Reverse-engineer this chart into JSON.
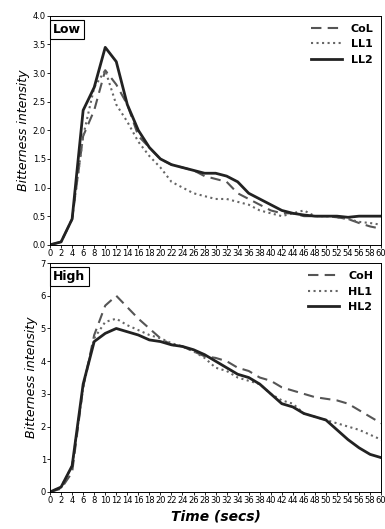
{
  "title_low": "Low",
  "title_high": "High",
  "xlabel": "Time (secs)",
  "ylabel": "Bitterness intensity",
  "xticks": [
    0,
    2,
    4,
    6,
    8,
    10,
    12,
    14,
    16,
    18,
    20,
    22,
    24,
    26,
    28,
    30,
    32,
    34,
    36,
    38,
    40,
    42,
    44,
    46,
    48,
    50,
    52,
    54,
    56,
    58,
    60
  ],
  "low": {
    "ylim": [
      0,
      4.0
    ],
    "yticks": [
      0.0,
      0.5,
      1.0,
      1.5,
      2.0,
      2.5,
      3.0,
      3.5,
      4.0
    ],
    "CoL": {
      "x": [
        0,
        2,
        4,
        6,
        8,
        10,
        12,
        14,
        16,
        18,
        20,
        22,
        24,
        26,
        28,
        30,
        32,
        34,
        36,
        38,
        40,
        42,
        44,
        46,
        48,
        50,
        52,
        54,
        56,
        58,
        60
      ],
      "y": [
        0.0,
        0.05,
        0.45,
        1.9,
        2.35,
        3.05,
        2.8,
        2.45,
        1.9,
        1.7,
        1.5,
        1.4,
        1.35,
        1.3,
        1.2,
        1.15,
        1.1,
        0.9,
        0.8,
        0.7,
        0.6,
        0.55,
        0.55,
        0.5,
        0.5,
        0.5,
        0.48,
        0.45,
        0.38,
        0.32,
        0.28
      ],
      "style": "dashed",
      "color": "#555555",
      "linewidth": 1.5
    },
    "LL1": {
      "x": [
        0,
        2,
        4,
        6,
        8,
        10,
        12,
        14,
        16,
        18,
        20,
        22,
        24,
        26,
        28,
        30,
        32,
        34,
        36,
        38,
        40,
        42,
        44,
        46,
        48,
        50,
        52,
        54,
        56,
        58,
        60
      ],
      "y": [
        0.0,
        0.05,
        0.45,
        1.9,
        2.75,
        3.05,
        2.45,
        2.15,
        1.8,
        1.55,
        1.35,
        1.1,
        1.0,
        0.9,
        0.85,
        0.8,
        0.8,
        0.75,
        0.7,
        0.6,
        0.55,
        0.5,
        0.55,
        0.6,
        0.5,
        0.5,
        0.48,
        0.45,
        0.4,
        0.38,
        0.35
      ],
      "style": "dotted",
      "color": "#666666",
      "linewidth": 1.5
    },
    "LL2": {
      "x": [
        0,
        2,
        4,
        6,
        8,
        10,
        12,
        14,
        16,
        18,
        20,
        22,
        24,
        26,
        28,
        30,
        32,
        34,
        36,
        38,
        40,
        42,
        44,
        46,
        48,
        50,
        52,
        54,
        56,
        58,
        60
      ],
      "y": [
        0.0,
        0.05,
        0.45,
        2.35,
        2.75,
        3.45,
        3.2,
        2.45,
        2.0,
        1.7,
        1.5,
        1.4,
        1.35,
        1.3,
        1.25,
        1.25,
        1.2,
        1.1,
        0.9,
        0.8,
        0.7,
        0.6,
        0.55,
        0.52,
        0.5,
        0.5,
        0.5,
        0.48,
        0.5,
        0.5,
        0.5
      ],
      "style": "solid",
      "color": "#222222",
      "linewidth": 2.0
    }
  },
  "high": {
    "ylim": [
      0,
      7
    ],
    "yticks": [
      0,
      1,
      2,
      3,
      4,
      5,
      6,
      7
    ],
    "CoH": {
      "x": [
        0,
        2,
        4,
        6,
        8,
        10,
        12,
        14,
        16,
        18,
        20,
        22,
        24,
        26,
        28,
        30,
        32,
        34,
        36,
        38,
        40,
        42,
        44,
        46,
        48,
        50,
        52,
        54,
        56,
        58,
        60
      ],
      "y": [
        0.0,
        0.1,
        0.6,
        3.2,
        4.8,
        5.7,
        6.0,
        5.65,
        5.3,
        5.0,
        4.7,
        4.5,
        4.45,
        4.3,
        4.15,
        4.1,
        4.0,
        3.8,
        3.7,
        3.5,
        3.4,
        3.2,
        3.1,
        3.0,
        2.9,
        2.85,
        2.8,
        2.7,
        2.5,
        2.3,
        2.1
      ],
      "style": "dashed",
      "color": "#555555",
      "linewidth": 1.5
    },
    "HL1": {
      "x": [
        0,
        2,
        4,
        6,
        8,
        10,
        12,
        14,
        16,
        18,
        20,
        22,
        24,
        26,
        28,
        30,
        32,
        34,
        36,
        38,
        40,
        42,
        44,
        46,
        48,
        50,
        52,
        54,
        56,
        58,
        60
      ],
      "y": [
        0.0,
        0.15,
        0.8,
        3.2,
        4.7,
        5.2,
        5.3,
        5.1,
        4.95,
        4.8,
        4.7,
        4.55,
        4.45,
        4.3,
        4.1,
        3.8,
        3.7,
        3.5,
        3.4,
        3.3,
        3.0,
        2.8,
        2.7,
        2.4,
        2.3,
        2.2,
        2.1,
        2.0,
        1.9,
        1.75,
        1.6
      ],
      "style": "dotted",
      "color": "#666666",
      "linewidth": 1.5
    },
    "HL2": {
      "x": [
        0,
        2,
        4,
        6,
        8,
        10,
        12,
        14,
        16,
        18,
        20,
        22,
        24,
        26,
        28,
        30,
        32,
        34,
        36,
        38,
        40,
        42,
        44,
        46,
        48,
        50,
        52,
        54,
        56,
        58,
        60
      ],
      "y": [
        0.0,
        0.15,
        0.8,
        3.3,
        4.6,
        4.85,
        5.0,
        4.9,
        4.8,
        4.65,
        4.6,
        4.5,
        4.45,
        4.35,
        4.2,
        4.0,
        3.8,
        3.6,
        3.5,
        3.3,
        3.0,
        2.7,
        2.6,
        2.4,
        2.3,
        2.2,
        1.9,
        1.6,
        1.35,
        1.15,
        1.05
      ],
      "style": "solid",
      "color": "#222222",
      "linewidth": 2.0
    }
  },
  "background_color": "#ffffff",
  "legend_fontsize": 8,
  "axis_label_fontsize": 9,
  "tick_fontsize": 6,
  "title_fontsize": 9
}
